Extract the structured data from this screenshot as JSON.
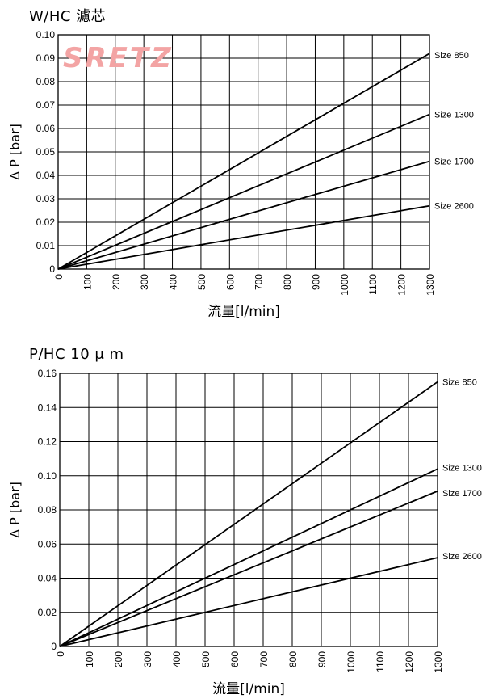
{
  "watermark": "SRETZ",
  "chart_data": [
    {
      "type": "line",
      "title": "W/HC 濾芯",
      "xlabel": "流量[l/min]",
      "ylabel": "Δ P [bar]",
      "xlim": [
        0,
        1300
      ],
      "ylim": [
        0,
        0.1
      ],
      "xticks": [
        0,
        100,
        200,
        300,
        400,
        500,
        600,
        700,
        800,
        900,
        1000,
        1100,
        1200,
        1300
      ],
      "xtick_labels": [
        "0",
        "100",
        "200",
        "300",
        "400",
        "500",
        "600",
        "700",
        "800",
        "900",
        "1000",
        "1100",
        "1200",
        "1300"
      ],
      "yticks": [
        0,
        0.01,
        0.02,
        0.03,
        0.04,
        0.05,
        0.06,
        0.07,
        0.08,
        0.09,
        0.1
      ],
      "ytick_labels": [
        "0",
        "0.01",
        "0.02",
        "0.03",
        "0.04",
        "0.05",
        "0.06",
        "0.07",
        "0.08",
        "0.09",
        "0.10"
      ],
      "grid": true,
      "series": [
        {
          "name": "Size 850",
          "x": [
            0,
            1300
          ],
          "y": [
            0,
            0.092
          ]
        },
        {
          "name": "Size 1300",
          "x": [
            0,
            1300
          ],
          "y": [
            0,
            0.066
          ]
        },
        {
          "name": "Size 1700",
          "x": [
            0,
            1300
          ],
          "y": [
            0,
            0.046
          ]
        },
        {
          "name": "Size 2600",
          "x": [
            0,
            1300
          ],
          "y": [
            0,
            0.027
          ]
        }
      ]
    },
    {
      "type": "line",
      "title": "P/HC 10 μ m",
      "xlabel": "流量[l/min]",
      "ylabel": "Δ P [bar]",
      "xlim": [
        0,
        1300
      ],
      "ylim": [
        0,
        0.16
      ],
      "xticks": [
        0,
        100,
        200,
        300,
        400,
        500,
        600,
        700,
        800,
        900,
        1000,
        1100,
        1200,
        1300
      ],
      "xtick_labels": [
        "0",
        "100",
        "200",
        "300",
        "400",
        "500",
        "600",
        "700",
        "800",
        "900",
        "1000",
        "1100",
        "1200",
        "1300"
      ],
      "yticks": [
        0,
        0.02,
        0.04,
        0.06,
        0.08,
        0.1,
        0.12,
        0.14,
        0.16
      ],
      "ytick_labels": [
        "0",
        "0.02",
        "0.04",
        "0.06",
        "0.08",
        "0.10",
        "0.12",
        "0.14",
        "0.16"
      ],
      "grid": true,
      "series": [
        {
          "name": "Size 850",
          "x": [
            0,
            1300
          ],
          "y": [
            0,
            0.155
          ]
        },
        {
          "name": "Size 1300",
          "x": [
            0,
            1300
          ],
          "y": [
            0,
            0.104
          ]
        },
        {
          "name": "Size 1700",
          "x": [
            0,
            1300
          ],
          "y": [
            0,
            0.091
          ]
        },
        {
          "name": "Size 2600",
          "x": [
            0,
            1300
          ],
          "y": [
            0,
            0.052
          ]
        }
      ]
    }
  ]
}
